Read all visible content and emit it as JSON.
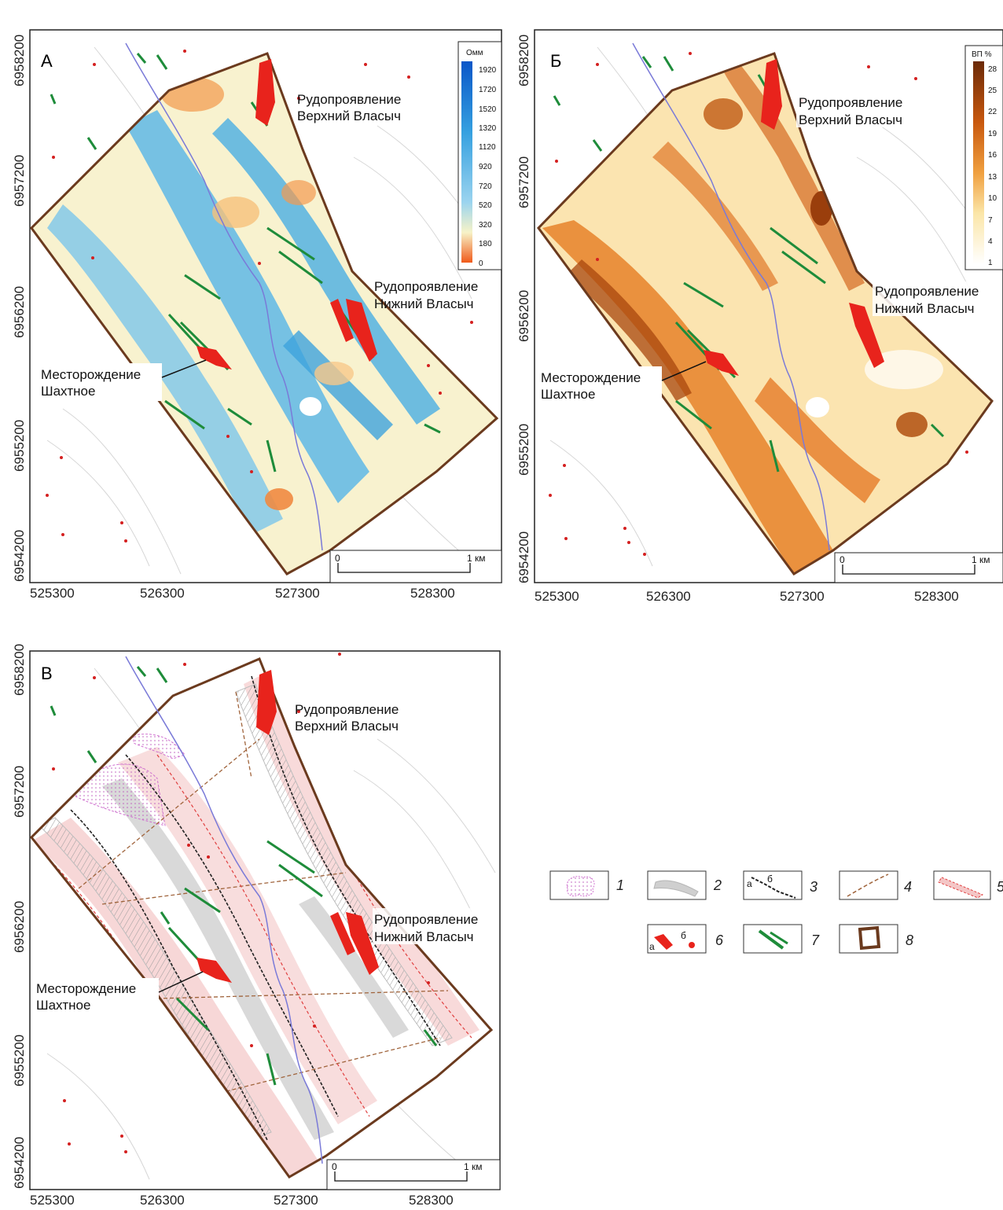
{
  "panels": [
    {
      "letter": "А",
      "y_ticks": [
        "6958200",
        "6957200",
        "6956200",
        "6955200",
        "6954200"
      ],
      "x_ticks": [
        "525300",
        "526300",
        "527300",
        "528300"
      ],
      "labels": {
        "upper_1": "Рудопроявление",
        "upper_2": "Верхний Власыч",
        "lower_1": "Рудопроявление",
        "lower_2": "Нижний Власыч",
        "deposit_1": "Месторождение",
        "deposit_2": "Шахтное"
      },
      "scale": {
        "zero": "0",
        "end": "1 км"
      },
      "colorbar": {
        "title": "Омм",
        "ticks": [
          "1920",
          "1720",
          "1520",
          "1320",
          "1120",
          "920",
          "720",
          "520",
          "320",
          "180",
          "0"
        ]
      }
    },
    {
      "letter": "Б",
      "y_ticks": [
        "6958200",
        "6957200",
        "6956200",
        "6955200",
        "6954200"
      ],
      "x_ticks": [
        "525300",
        "526300",
        "527300",
        "528300"
      ],
      "labels": {
        "upper_1": "Рудопроявление",
        "upper_2": "Верхний Власыч",
        "lower_1": "Рудопроявление",
        "lower_2": "Нижний Власыч",
        "deposit_1": "Месторождение",
        "deposit_2": "Шахтное"
      },
      "scale": {
        "zero": "0",
        "end": "1 км"
      },
      "colorbar": {
        "title": "ВП %",
        "ticks": [
          "28",
          "25",
          "22",
          "19",
          "16",
          "13",
          "10",
          "7",
          "4",
          "1"
        ]
      }
    },
    {
      "letter": "В",
      "y_ticks": [
        "6958200",
        "6957200",
        "6956200",
        "6955200",
        "6954200"
      ],
      "x_ticks": [
        "525300",
        "526300",
        "527300",
        "528300"
      ],
      "labels": {
        "upper_1": "Рудопроявление",
        "upper_2": "Верхний Власыч",
        "lower_1": "Рудопроявление",
        "lower_2": "Нижний Власыч",
        "deposit_1": "Месторождение",
        "deposit_2": "Шахтное"
      },
      "scale": {
        "zero": "0",
        "end": "1 км"
      }
    }
  ],
  "legend": {
    "items": [
      "1",
      "2",
      "3",
      "4",
      "5",
      "6",
      "7",
      "8"
    ],
    "sub_a": "а",
    "sub_b": "б"
  },
  "colors": {
    "boundary": "#6b3a1e",
    "ore": "#e8231c",
    "vein": "#1e8c3a",
    "river": "#7a7ad8",
    "point": "#d42020"
  }
}
